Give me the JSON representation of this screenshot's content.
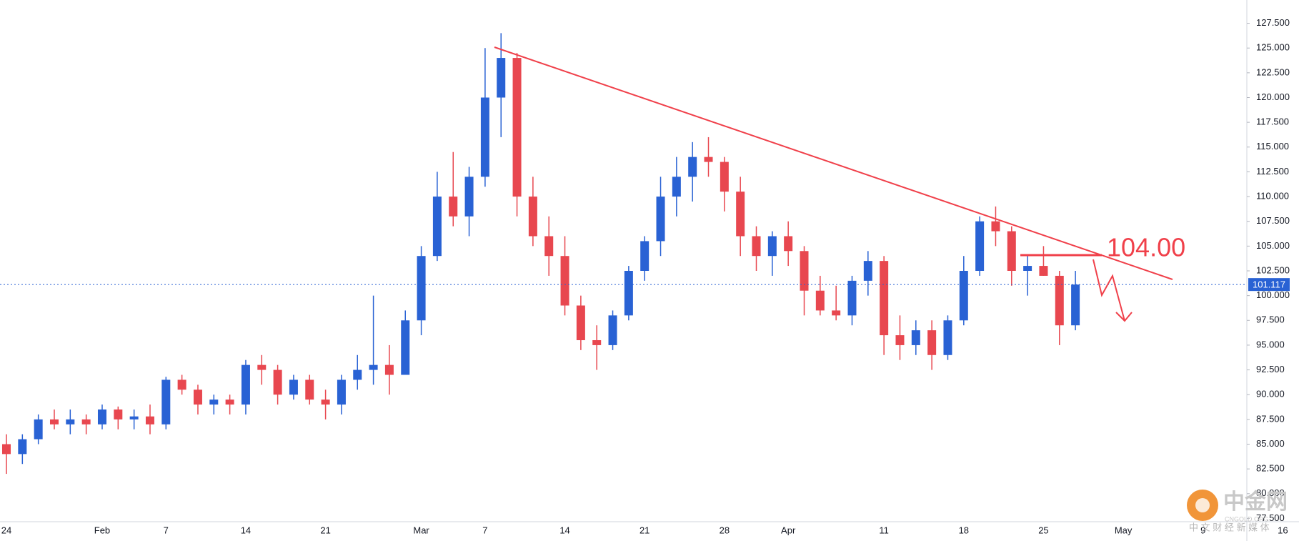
{
  "chart_data": {
    "type": "candlestick",
    "categories": [
      "24",
      null,
      null,
      null,
      null,
      null,
      "Feb",
      null,
      null,
      null,
      "7",
      null,
      null,
      null,
      null,
      "14",
      null,
      null,
      null,
      null,
      "21",
      null,
      null,
      null,
      null,
      null,
      "Mar",
      null,
      null,
      null,
      "7",
      null,
      null,
      null,
      null,
      "14",
      null,
      null,
      null,
      null,
      "21",
      null,
      null,
      null,
      null,
      "28",
      null,
      null,
      null,
      "Apr",
      null,
      null,
      null,
      null,
      null,
      "11",
      null,
      null,
      null,
      null,
      "18",
      null,
      null,
      null,
      null,
      "25",
      null,
      null,
      null,
      null,
      "May",
      null,
      null,
      null,
      null,
      "9",
      null,
      null,
      null,
      null,
      "16"
    ],
    "open": [
      85,
      84,
      85.5,
      87.5,
      87,
      87.5,
      87,
      88.5,
      87.5,
      87.8,
      87,
      91.5,
      90.5,
      89,
      89.5,
      89,
      93,
      92.5,
      90,
      91.5,
      89.5,
      89,
      91.5,
      92.5,
      93,
      92,
      97.5,
      104,
      110,
      108,
      112,
      120,
      124,
      110,
      106,
      104,
      99,
      95.5,
      95,
      98,
      102.5,
      105.5,
      110,
      112,
      114,
      113.5,
      110.5,
      106,
      104,
      106,
      104.5,
      100.5,
      98.5,
      98,
      101.5,
      103.5,
      96,
      95,
      96.5,
      94,
      97.5,
      102.5,
      107.5,
      106.5,
      102.5,
      103,
      102,
      97,
      null,
      null,
      null,
      null,
      null,
      null,
      null,
      null,
      null,
      null,
      null,
      null,
      null
    ],
    "high": [
      86,
      86,
      88,
      88.5,
      88.5,
      88,
      89,
      88.8,
      88.5,
      89,
      91.8,
      92,
      91,
      90,
      90,
      93.5,
      94,
      93,
      92,
      92,
      90.5,
      92,
      94,
      100,
      95,
      98.5,
      105,
      112.5,
      114.5,
      113,
      125,
      126.5,
      124.5,
      112,
      108,
      106,
      100,
      97,
      98.5,
      103,
      106,
      112,
      114,
      115.5,
      116,
      114,
      112,
      107,
      106.5,
      107.5,
      105,
      102,
      101,
      102,
      104.5,
      104,
      98,
      97.5,
      97.5,
      98,
      104,
      108,
      109,
      107,
      104,
      105,
      102.5,
      102.5,
      null,
      null,
      null,
      null,
      null,
      null,
      null,
      null,
      null,
      null,
      null,
      null,
      null
    ],
    "low": [
      82,
      83,
      85,
      86.5,
      86,
      86,
      86.5,
      86.5,
      86.5,
      86,
      86.5,
      90,
      88,
      88,
      88,
      88,
      91,
      89,
      89.5,
      89,
      87.5,
      88,
      90.5,
      91,
      90,
      92,
      96,
      103.5,
      107,
      106,
      111,
      116,
      108,
      105,
      102,
      98,
      94.5,
      92.5,
      94.5,
      97.5,
      101.5,
      104,
      108,
      109.5,
      112,
      108.5,
      104,
      102.5,
      102,
      103,
      98,
      98,
      97.5,
      97,
      100,
      94,
      93.5,
      94,
      92.5,
      93.5,
      97,
      102,
      105,
      101,
      100,
      102,
      95,
      96.5,
      null,
      null,
      null,
      null,
      null,
      null,
      null,
      null,
      null,
      null,
      null,
      null,
      null
    ],
    "close": [
      84,
      85.5,
      87.5,
      87,
      87.5,
      87,
      88.5,
      87.5,
      87.8,
      87,
      91.5,
      90.5,
      89,
      89.5,
      89,
      93,
      92.5,
      90,
      91.5,
      89.5,
      89,
      91.5,
      92.5,
      93,
      92,
      97.5,
      104,
      110,
      108,
      112,
      120,
      124,
      110,
      106,
      104,
      99,
      95.5,
      95,
      98,
      102.5,
      105.5,
      110,
      112,
      114,
      113.5,
      110.5,
      106,
      104,
      106,
      104.5,
      100.5,
      98.5,
      98,
      101.5,
      103.5,
      96,
      95,
      96.5,
      94,
      97.5,
      102.5,
      107.5,
      106.5,
      102.5,
      103,
      102,
      97,
      101.117,
      null,
      null,
      null,
      null,
      null,
      null,
      null,
      null,
      null,
      null,
      null,
      null,
      null
    ],
    "up_color": "#2962d4",
    "down_color": "#e8474f",
    "ylim": [
      77.17,
      129.85
    ],
    "yticks": [
      {
        "value": 77.5,
        "label": "77.500"
      },
      {
        "value": 80,
        "label": "80.000"
      },
      {
        "value": 82.5,
        "label": "82.500"
      },
      {
        "value": 85,
        "label": "85.000"
      },
      {
        "value": 87.5,
        "label": "87.500"
      },
      {
        "value": 90,
        "label": "90.000"
      },
      {
        "value": 92.5,
        "label": "92.500"
      },
      {
        "value": 95,
        "label": "95.000"
      },
      {
        "value": 97.5,
        "label": "97.500"
      },
      {
        "value": 100,
        "label": "100.000"
      },
      {
        "value": 102.5,
        "label": "102.500"
      },
      {
        "value": 105,
        "label": "105.000"
      },
      {
        "value": 107.5,
        "label": "107.500"
      },
      {
        "value": 110,
        "label": "110.000"
      },
      {
        "value": 112.5,
        "label": "112.500"
      },
      {
        "value": 115,
        "label": "115.000"
      },
      {
        "value": 117.5,
        "label": "117.500"
      },
      {
        "value": 120,
        "label": "120.000"
      },
      {
        "value": 122.5,
        "label": "122.500"
      },
      {
        "value": 125,
        "label": "125.000"
      },
      {
        "value": 127.5,
        "label": "127.500"
      }
    ],
    "grid": false,
    "annotation": "104.00",
    "watermark": {
      "logo": "中金网",
      "site": "CNGOLD.ORG",
      "tagline": "中 文 财 经 新 媒 体"
    }
  }
}
